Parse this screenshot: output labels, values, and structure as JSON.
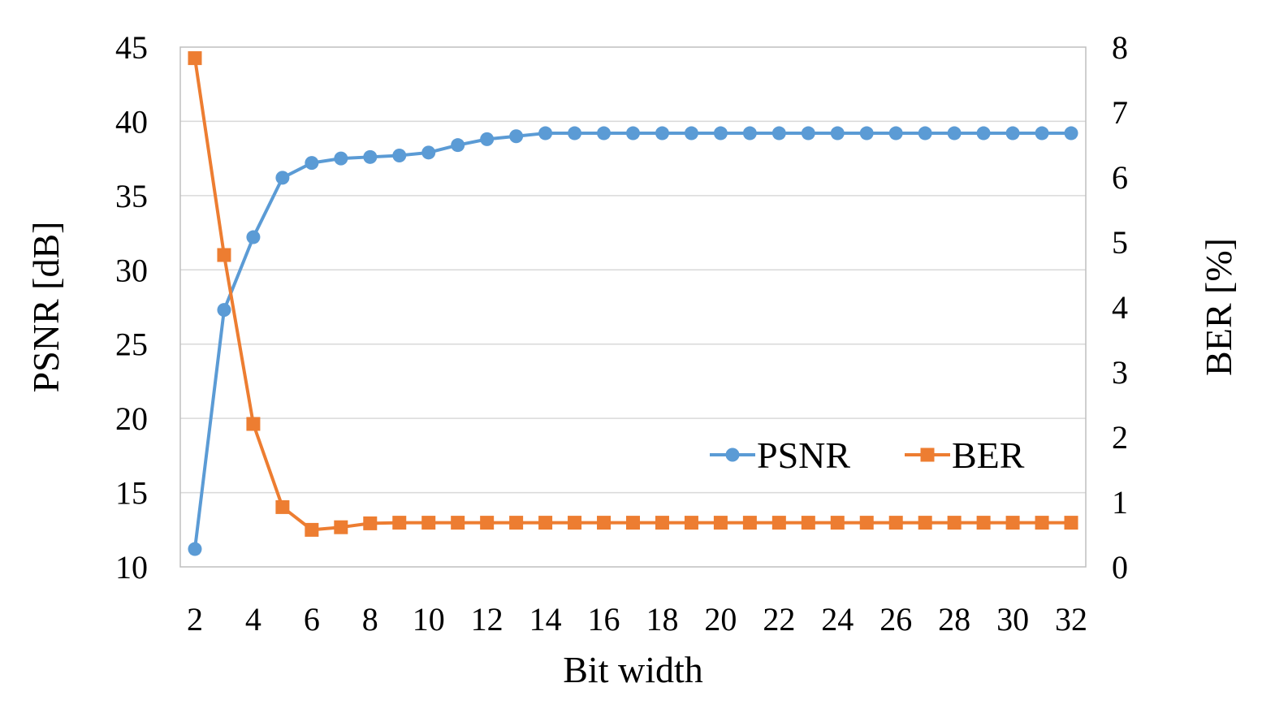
{
  "chart_data": {
    "type": "line",
    "x": [
      2,
      3,
      4,
      5,
      6,
      7,
      8,
      9,
      10,
      11,
      12,
      13,
      14,
      15,
      16,
      17,
      18,
      19,
      20,
      21,
      22,
      23,
      24,
      25,
      26,
      27,
      28,
      29,
      30,
      31,
      32
    ],
    "xlabel": "Bit width",
    "xticks": [
      2,
      4,
      6,
      8,
      10,
      12,
      14,
      16,
      18,
      20,
      22,
      24,
      26,
      28,
      30,
      32
    ],
    "xlim": [
      1.5,
      32.5
    ],
    "series": [
      {
        "name": "PSNR",
        "axis": "left",
        "color": "#5b9bd5",
        "marker": "circle",
        "values": [
          11.2,
          27.3,
          32.2,
          36.2,
          37.2,
          37.5,
          37.6,
          37.7,
          37.9,
          38.4,
          38.8,
          39.0,
          39.2,
          39.2,
          39.2,
          39.2,
          39.2,
          39.2,
          39.2,
          39.2,
          39.2,
          39.2,
          39.2,
          39.2,
          39.2,
          39.2,
          39.2,
          39.2,
          39.2,
          39.2,
          39.2
        ]
      },
      {
        "name": "BER",
        "axis": "right",
        "color": "#ed7d31",
        "marker": "square",
        "values": [
          7.83,
          4.8,
          2.2,
          0.92,
          0.57,
          0.61,
          0.67,
          0.68,
          0.68,
          0.68,
          0.68,
          0.68,
          0.68,
          0.68,
          0.68,
          0.68,
          0.68,
          0.68,
          0.68,
          0.68,
          0.68,
          0.68,
          0.68,
          0.68,
          0.68,
          0.68,
          0.68,
          0.68,
          0.68,
          0.68,
          0.68
        ]
      }
    ],
    "y_left": {
      "label": "PSNR [dB]",
      "lim": [
        10,
        45
      ],
      "ticks": [
        10,
        15,
        20,
        25,
        30,
        35,
        40,
        45
      ]
    },
    "y_right": {
      "label": "BER [%]",
      "lim": [
        0,
        8
      ],
      "ticks": [
        0,
        1,
        2,
        3,
        4,
        5,
        6,
        7,
        8
      ]
    },
    "grid": true,
    "legend": "bottom-right-inside"
  }
}
